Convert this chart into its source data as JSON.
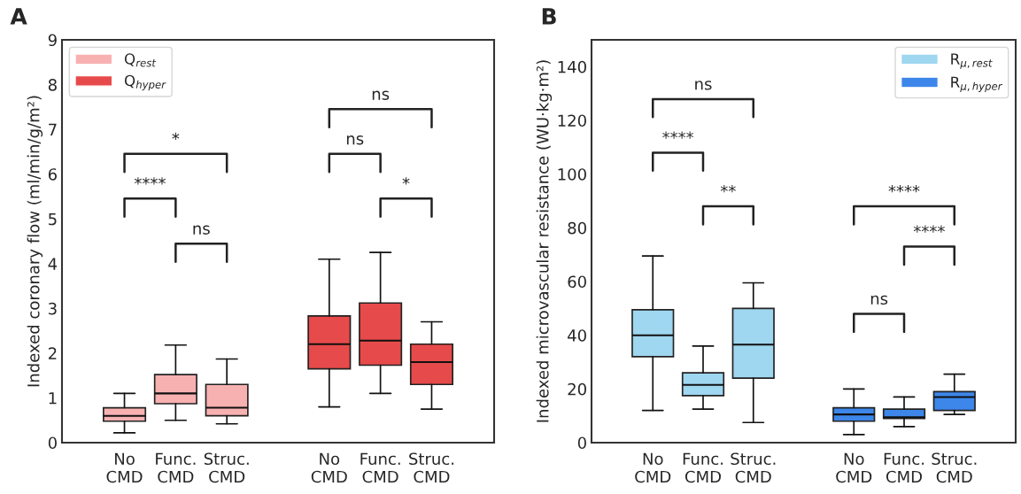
{
  "chart_data": [
    {
      "type": "box",
      "title": "A",
      "ylabel": "Indexed coronary flow (ml/min/g/m²)",
      "categories": [
        "No\nCMD",
        "Func.\nCMD",
        "Struc.\nCMD",
        null,
        "No\nCMD",
        "Func.\nCMD",
        "Struc.\nCMD"
      ],
      "ylim": [
        0,
        9
      ],
      "yticks": [
        0,
        1,
        2,
        3,
        4,
        5,
        6,
        7,
        8,
        9
      ],
      "grid": false,
      "legend": "top left",
      "series": [
        {
          "name": "Q$_{rest}$",
          "color": "#f8b1b1",
          "boxes": [
            {
              "low": 0.22,
              "q1": 0.48,
              "median": 0.6,
              "q3": 0.78,
              "high": 1.1
            },
            {
              "low": 0.5,
              "q1": 0.87,
              "median": 1.1,
              "q3": 1.52,
              "high": 2.18
            },
            {
              "low": 0.42,
              "q1": 0.6,
              "median": 0.78,
              "q3": 1.3,
              "high": 1.87
            },
            null,
            null,
            null,
            null
          ]
        },
        {
          "name": "Q$_{hyper}$",
          "color": "#e74a4a",
          "boxes": [
            null,
            null,
            null,
            null,
            {
              "low": 0.8,
              "q1": 1.65,
              "median": 2.2,
              "q3": 2.83,
              "high": 4.1
            },
            {
              "low": 1.1,
              "q1": 1.73,
              "median": 2.28,
              "q3": 3.12,
              "high": 4.25
            },
            {
              "low": 0.75,
              "q1": 1.3,
              "median": 1.8,
              "q3": 2.2,
              "high": 2.7
            }
          ]
        }
      ],
      "annotations": [
        "ns",
        "****",
        "*",
        "*",
        "ns",
        "ns"
      ]
    },
    {
      "type": "box",
      "title": "B",
      "ylabel": "Indexed microvascular resistance (WU·kg·m²)",
      "categories": [
        "No\nCMD",
        "Func.\nCMD",
        "Struc.\nCMD",
        null,
        "No\nCMD",
        "Func.\nCMD",
        "Struc.\nCMD"
      ],
      "ylim": [
        0,
        150
      ],
      "yticks": [
        0,
        20,
        40,
        60,
        80,
        100,
        120,
        140
      ],
      "grid": false,
      "legend": "top right",
      "series": [
        {
          "name": "R$_{μ,rest}$",
          "color": "#9fd6f0",
          "boxes": [
            {
              "low": 12,
              "q1": 32,
              "median": 40,
              "q3": 49.5,
              "high": 69.5
            },
            {
              "low": 12.5,
              "q1": 17.5,
              "median": 21.5,
              "q3": 26,
              "high": 36
            },
            {
              "low": 7.5,
              "q1": 24,
              "median": 36.5,
              "q3": 50,
              "high": 59.5
            },
            null,
            null,
            null,
            null
          ]
        },
        {
          "name": "R$_{μ,hyper}$",
          "color": "#3d86ea",
          "boxes": [
            null,
            null,
            null,
            null,
            {
              "low": 3,
              "q1": 8,
              "median": 10.5,
              "q3": 13,
              "high": 20
            },
            {
              "low": 6,
              "q1": 9,
              "median": 9.5,
              "q3": 12.5,
              "high": 17
            },
            {
              "low": 10.5,
              "q1": 12,
              "median": 17,
              "q3": 19,
              "high": 25.5
            }
          ]
        }
      ],
      "annotations": [
        "ns",
        "****",
        "**",
        "****",
        "****",
        "ns"
      ]
    }
  ]
}
